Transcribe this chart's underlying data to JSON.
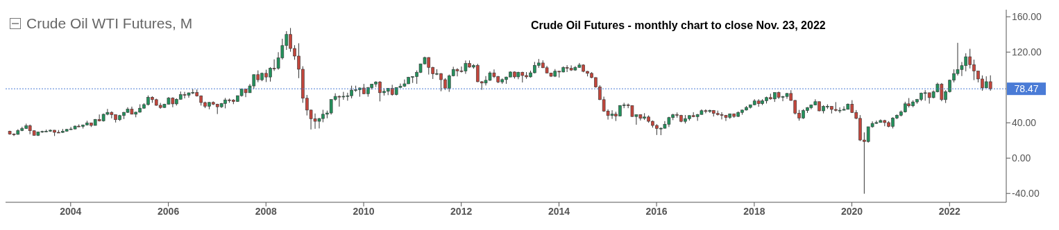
{
  "chart_data": {
    "type": "candlestick",
    "title": "Crude Oil WTI Futures, M",
    "subtitle": "Crude Oil Futures - monthly chart to close Nov. 23, 2022",
    "x": [
      "2002-10",
      "2002-11",
      "2002-12",
      "2003-01",
      "2003-02",
      "2003-03",
      "2003-04",
      "2003-05",
      "2003-06",
      "2003-07",
      "2003-08",
      "2003-09",
      "2003-10",
      "2003-11",
      "2003-12",
      "2004-01",
      "2004-02",
      "2004-03",
      "2004-04",
      "2004-05",
      "2004-06",
      "2004-07",
      "2004-08",
      "2004-09",
      "2004-10",
      "2004-11",
      "2004-12",
      "2005-01",
      "2005-02",
      "2005-03",
      "2005-04",
      "2005-05",
      "2005-06",
      "2005-07",
      "2005-08",
      "2005-09",
      "2005-10",
      "2005-11",
      "2005-12",
      "2006-01",
      "2006-02",
      "2006-03",
      "2006-04",
      "2006-05",
      "2006-06",
      "2006-07",
      "2006-08",
      "2006-09",
      "2006-10",
      "2006-11",
      "2006-12",
      "2007-01",
      "2007-02",
      "2007-03",
      "2007-04",
      "2007-05",
      "2007-06",
      "2007-07",
      "2007-08",
      "2007-09",
      "2007-10",
      "2007-11",
      "2007-12",
      "2008-01",
      "2008-02",
      "2008-03",
      "2008-04",
      "2008-05",
      "2008-06",
      "2008-07",
      "2008-08",
      "2008-09",
      "2008-10",
      "2008-11",
      "2008-12",
      "2009-01",
      "2009-02",
      "2009-03",
      "2009-04",
      "2009-05",
      "2009-06",
      "2009-07",
      "2009-08",
      "2009-09",
      "2009-10",
      "2009-11",
      "2009-12",
      "2010-01",
      "2010-02",
      "2010-03",
      "2010-04",
      "2010-05",
      "2010-06",
      "2010-07",
      "2010-08",
      "2010-09",
      "2010-10",
      "2010-11",
      "2010-12",
      "2011-01",
      "2011-02",
      "2011-03",
      "2011-04",
      "2011-05",
      "2011-06",
      "2011-07",
      "2011-08",
      "2011-09",
      "2011-10",
      "2011-11",
      "2011-12",
      "2012-01",
      "2012-02",
      "2012-03",
      "2012-04",
      "2012-05",
      "2012-06",
      "2012-07",
      "2012-08",
      "2012-09",
      "2012-10",
      "2012-11",
      "2012-12",
      "2013-01",
      "2013-02",
      "2013-03",
      "2013-04",
      "2013-05",
      "2013-06",
      "2013-07",
      "2013-08",
      "2013-09",
      "2013-10",
      "2013-11",
      "2013-12",
      "2014-01",
      "2014-02",
      "2014-03",
      "2014-04",
      "2014-05",
      "2014-06",
      "2014-07",
      "2014-08",
      "2014-09",
      "2014-10",
      "2014-11",
      "2014-12",
      "2015-01",
      "2015-02",
      "2015-03",
      "2015-04",
      "2015-05",
      "2015-06",
      "2015-07",
      "2015-08",
      "2015-09",
      "2015-10",
      "2015-11",
      "2015-12",
      "2016-01",
      "2016-02",
      "2016-03",
      "2016-04",
      "2016-05",
      "2016-06",
      "2016-07",
      "2016-08",
      "2016-09",
      "2016-10",
      "2016-11",
      "2016-12",
      "2017-01",
      "2017-02",
      "2017-03",
      "2017-04",
      "2017-05",
      "2017-06",
      "2017-07",
      "2017-08",
      "2017-09",
      "2017-10",
      "2017-11",
      "2017-12",
      "2018-01",
      "2018-02",
      "2018-03",
      "2018-04",
      "2018-05",
      "2018-06",
      "2018-07",
      "2018-08",
      "2018-09",
      "2018-10",
      "2018-11",
      "2018-12",
      "2019-01",
      "2019-02",
      "2019-03",
      "2019-04",
      "2019-05",
      "2019-06",
      "2019-07",
      "2019-08",
      "2019-09",
      "2019-10",
      "2019-11",
      "2019-12",
      "2020-01",
      "2020-02",
      "2020-03",
      "2020-04",
      "2020-05",
      "2020-06",
      "2020-07",
      "2020-08",
      "2020-09",
      "2020-10",
      "2020-11",
      "2020-12",
      "2021-01",
      "2021-02",
      "2021-03",
      "2021-04",
      "2021-05",
      "2021-06",
      "2021-07",
      "2021-08",
      "2021-09",
      "2021-10",
      "2021-11",
      "2021-12",
      "2022-01",
      "2022-02",
      "2022-03",
      "2022-04",
      "2022-05",
      "2022-06",
      "2022-07",
      "2022-08",
      "2022-09",
      "2022-10",
      "2022-11"
    ],
    "ohlc": [
      [
        30.5,
        31,
        26.5,
        27.2
      ],
      [
        27.2,
        28,
        25,
        26.9
      ],
      [
        26.9,
        32.7,
        26.5,
        31.2
      ],
      [
        31.2,
        35.5,
        30.5,
        33.5
      ],
      [
        33.5,
        39,
        33,
        36.6
      ],
      [
        36.6,
        38,
        27,
        31
      ],
      [
        31,
        31.5,
        25.5,
        25.8
      ],
      [
        25.8,
        30,
        25,
        29.6
      ],
      [
        29.6,
        31,
        28.5,
        30.2
      ],
      [
        30.2,
        32.3,
        29.5,
        30.5
      ],
      [
        30.5,
        32.4,
        29.8,
        31.6
      ],
      [
        31.6,
        31.8,
        25,
        29.2
      ],
      [
        29.2,
        31.8,
        28.5,
        29.1
      ],
      [
        29.1,
        33,
        28.5,
        30.4
      ],
      [
        30.4,
        33.1,
        30,
        32.5
      ],
      [
        32.5,
        35.3,
        32,
        33
      ],
      [
        33,
        37,
        32.6,
        36.2
      ],
      [
        36.2,
        38.2,
        35,
        35.8
      ],
      [
        35.8,
        38,
        33.5,
        37.4
      ],
      [
        37.4,
        42.3,
        37,
        39.9
      ],
      [
        39.9,
        40,
        35.2,
        37
      ],
      [
        37,
        44.3,
        37,
        43.8
      ],
      [
        43.8,
        49.4,
        41.5,
        42.1
      ],
      [
        42.1,
        50.5,
        41.3,
        49.6
      ],
      [
        49.6,
        55.7,
        48.5,
        51.8
      ],
      [
        51.8,
        53,
        45,
        49.1
      ],
      [
        49.1,
        49.4,
        40.3,
        43.5
      ],
      [
        43.5,
        49,
        42.1,
        48.2
      ],
      [
        48.2,
        52.3,
        44.2,
        51.8
      ],
      [
        51.8,
        57.6,
        51.1,
        55.4
      ],
      [
        55.4,
        58.3,
        49.5,
        49.7
      ],
      [
        49.7,
        52.5,
        46.2,
        52
      ],
      [
        52,
        60.9,
        51.5,
        56.5
      ],
      [
        56.5,
        62.1,
        56,
        60.6
      ],
      [
        60.6,
        70.9,
        59.6,
        68.9
      ],
      [
        68.9,
        70,
        62.6,
        66.2
      ],
      [
        66.2,
        67.3,
        59.2,
        59.8
      ],
      [
        59.8,
        62.5,
        55.8,
        57.3
      ],
      [
        57.3,
        61.5,
        56.8,
        61
      ],
      [
        61,
        69.2,
        60.8,
        67.9
      ],
      [
        67.9,
        68.9,
        57.6,
        61.4
      ],
      [
        61.4,
        67.7,
        59.5,
        66.6
      ],
      [
        66.6,
        75.4,
        66.3,
        71.9
      ],
      [
        71.9,
        75,
        67.6,
        71.3
      ],
      [
        71.3,
        74.2,
        68.4,
        73.9
      ],
      [
        73.9,
        78.4,
        72.5,
        74.4
      ],
      [
        74.4,
        77.7,
        69.7,
        70.3
      ],
      [
        70.3,
        71,
        59.5,
        62.9
      ],
      [
        62.9,
        63.9,
        56.6,
        58.7
      ],
      [
        58.7,
        63.4,
        55.3,
        63.1
      ],
      [
        63.1,
        64.2,
        60,
        61.1
      ],
      [
        61.1,
        61.5,
        49.9,
        58.1
      ],
      [
        58.1,
        62.4,
        56.8,
        61.8
      ],
      [
        61.8,
        68.1,
        56.3,
        65.9
      ],
      [
        65.9,
        67.4,
        62.6,
        65.7
      ],
      [
        65.7,
        66.7,
        61.1,
        64
      ],
      [
        64,
        70.8,
        63.8,
        70.7
      ],
      [
        70.7,
        78.8,
        69.6,
        78.2
      ],
      [
        78.2,
        78.3,
        69,
        74
      ],
      [
        74,
        83.9,
        73.9,
        81.7
      ],
      [
        81.7,
        94.5,
        78.3,
        94.5
      ],
      [
        94.5,
        99.3,
        85.9,
        88.7
      ],
      [
        88.7,
        96.8,
        87.1,
        96
      ],
      [
        96,
        100.1,
        86.1,
        91.8
      ],
      [
        91.8,
        103,
        86.6,
        101.8
      ],
      [
        101.8,
        111.8,
        98.7,
        101.6
      ],
      [
        101.6,
        119.9,
        100.1,
        113.5
      ],
      [
        113.5,
        135.1,
        111.6,
        127.4
      ],
      [
        127.4,
        143.7,
        122.5,
        140
      ],
      [
        140,
        147.3,
        120.4,
        124.1
      ],
      [
        124.1,
        127.8,
        111.3,
        115.5
      ],
      [
        115.5,
        130,
        90.5,
        100.6
      ],
      [
        100.6,
        104,
        62.6,
        67.8
      ],
      [
        67.8,
        71.5,
        48.3,
        54.4
      ],
      [
        54.4,
        54.8,
        32.4,
        44.6
      ],
      [
        44.6,
        50.5,
        33.2,
        41.7
      ],
      [
        41.7,
        45.5,
        33.6,
        44.8
      ],
      [
        44.8,
        54.7,
        40.6,
        49.7
      ],
      [
        49.7,
        53.8,
        45.1,
        51.1
      ],
      [
        51.1,
        66.5,
        49.3,
        66.3
      ],
      [
        66.3,
        73.4,
        64.8,
        69.9
      ],
      [
        69.9,
        71,
        58.3,
        69.5
      ],
      [
        69.5,
        75,
        66,
        70
      ],
      [
        70,
        74,
        65,
        70.6
      ],
      [
        70.6,
        82,
        67.6,
        77
      ],
      [
        77,
        82,
        75,
        77.3
      ],
      [
        77.3,
        80,
        69.5,
        79.4
      ],
      [
        79.4,
        84,
        72.4,
        72.9
      ],
      [
        72.9,
        80.5,
        69.5,
        79.7
      ],
      [
        79.7,
        83.8,
        77.6,
        83.8
      ],
      [
        83.8,
        87.1,
        80.5,
        86.2
      ],
      [
        86.2,
        87.2,
        64.2,
        74
      ],
      [
        74,
        79.1,
        70.8,
        75.6
      ],
      [
        75.6,
        79.2,
        71.3,
        79
      ],
      [
        79,
        83,
        70.7,
        71.9
      ],
      [
        71.9,
        80,
        71,
        80
      ],
      [
        80,
        84.4,
        79.6,
        81.4
      ],
      [
        81.4,
        89,
        80.6,
        84.1
      ],
      [
        84.1,
        92,
        84,
        91.4
      ],
      [
        91.4,
        92.6,
        85.1,
        92.2
      ],
      [
        92.2,
        99.3,
        84.1,
        97
      ],
      [
        97,
        106.9,
        96.3,
        106.7
      ],
      [
        106.7,
        114.8,
        106,
        113.9
      ],
      [
        113.9,
        114.2,
        94.6,
        102.7
      ],
      [
        102.7,
        103.4,
        89.6,
        95.4
      ],
      [
        95.4,
        100.6,
        94,
        95.7
      ],
      [
        95.7,
        96.2,
        75.7,
        88.8
      ],
      [
        88.8,
        90.5,
        77.1,
        79.2
      ],
      [
        79.2,
        94.6,
        75,
        93.2
      ],
      [
        93.2,
        103.4,
        92.5,
        100.4
      ],
      [
        100.4,
        101.8,
        92.5,
        98.8
      ],
      [
        98.8,
        103.7,
        96.9,
        98.5
      ],
      [
        98.5,
        110.5,
        95.4,
        107.1
      ],
      [
        107.1,
        110.6,
        102.4,
        103
      ],
      [
        103,
        106.4,
        101.3,
        104.9
      ],
      [
        104.9,
        106.8,
        85.9,
        86.5
      ],
      [
        86.5,
        87.1,
        77.3,
        85
      ],
      [
        85,
        92.9,
        82.2,
        88.1
      ],
      [
        88.1,
        98.3,
        87.4,
        96.5
      ],
      [
        96.5,
        100.4,
        90.6,
        92.2
      ],
      [
        92.2,
        93.1,
        84.9,
        86.2
      ],
      [
        86.2,
        90.2,
        84,
        88.9
      ],
      [
        88.9,
        92.2,
        84.1,
        91.8
      ],
      [
        91.8,
        98.2,
        91.8,
        97.5
      ],
      [
        97.5,
        98.2,
        90,
        92
      ],
      [
        92,
        97.8,
        89.3,
        97.2
      ],
      [
        97.2,
        97.8,
        85.6,
        93.5
      ],
      [
        93.5,
        97.4,
        89.8,
        92
      ],
      [
        92,
        99,
        91.1,
        96.6
      ],
      [
        96.6,
        108.9,
        95.9,
        105
      ],
      [
        105,
        112.2,
        102.2,
        107.7
      ],
      [
        107.7,
        110.7,
        101.9,
        102.3
      ],
      [
        102.3,
        104.4,
        96,
        96.4
      ],
      [
        96.4,
        96.4,
        91.8,
        92.7
      ],
      [
        92.7,
        100.8,
        91.8,
        98.4
      ],
      [
        98.4,
        98.4,
        91.2,
        97.5
      ],
      [
        97.5,
        103.9,
        97,
        102.6
      ],
      [
        102.6,
        105.2,
        97.4,
        101.6
      ],
      [
        101.6,
        105,
        98.7,
        99.7
      ],
      [
        99.7,
        104.2,
        98.8,
        102.7
      ],
      [
        102.7,
        107.7,
        102.1,
        105.4
      ],
      [
        105.4,
        106.2,
        97.2,
        98.2
      ],
      [
        98.2,
        98.7,
        92.5,
        96
      ],
      [
        96,
        97.3,
        90.4,
        91.2
      ],
      [
        91.2,
        91.4,
        79.8,
        80.5
      ],
      [
        80.5,
        82.5,
        65.7,
        66.2
      ],
      [
        66.2,
        69.6,
        52.4,
        53.3
      ],
      [
        53.3,
        55.2,
        43.6,
        48.2
      ],
      [
        48.2,
        54.2,
        44.4,
        49.8
      ],
      [
        49.8,
        52.5,
        42,
        47.6
      ],
      [
        47.6,
        59.9,
        47.3,
        59.6
      ],
      [
        59.6,
        62.6,
        56.5,
        60.3
      ],
      [
        60.3,
        61.8,
        56.5,
        59.5
      ],
      [
        59.5,
        59.7,
        46.7,
        47.1
      ],
      [
        47.1,
        49.3,
        37.8,
        49.2
      ],
      [
        49.2,
        49.3,
        42.6,
        45.1
      ],
      [
        45.1,
        50.9,
        43.2,
        46.6
      ],
      [
        46.6,
        48.4,
        40,
        41.7
      ],
      [
        41.7,
        42.6,
        34.5,
        37
      ],
      [
        37,
        38.4,
        26.2,
        33.6
      ],
      [
        33.6,
        34.8,
        26,
        33.8
      ],
      [
        33.8,
        41.9,
        33.6,
        38.3
      ],
      [
        38.3,
        46.8,
        35.2,
        45.9
      ],
      [
        45.9,
        50.2,
        43,
        49.1
      ],
      [
        49.1,
        51.7,
        45.8,
        48.3
      ],
      [
        48.3,
        49,
        40.6,
        41.6
      ],
      [
        41.6,
        48.8,
        39.2,
        44.7
      ],
      [
        44.7,
        48.4,
        42.5,
        48.2
      ],
      [
        48.2,
        51.9,
        46.3,
        46.9
      ],
      [
        46.9,
        50,
        42.2,
        49.4
      ],
      [
        49.4,
        55.2,
        49.4,
        53.7
      ],
      [
        53.7,
        55.2,
        50.7,
        52.8
      ],
      [
        52.8,
        54.9,
        51.2,
        54
      ],
      [
        54,
        54.4,
        47.1,
        50.6
      ],
      [
        50.6,
        53.8,
        48.2,
        49.3
      ],
      [
        49.3,
        52,
        43.8,
        48.3
      ],
      [
        48.3,
        48.9,
        42,
        46
      ],
      [
        46,
        50.4,
        44.4,
        50.2
      ],
      [
        50.2,
        50.4,
        45.6,
        47.2
      ],
      [
        47.2,
        52.9,
        46.5,
        51.7
      ],
      [
        51.7,
        54.8,
        49.1,
        54.4
      ],
      [
        54.4,
        59,
        53.9,
        57.4
      ],
      [
        57.4,
        60.5,
        56.1,
        60.4
      ],
      [
        60.4,
        66.7,
        59.8,
        64.7
      ],
      [
        64.7,
        66.7,
        58.1,
        61.6
      ],
      [
        61.6,
        66.7,
        60,
        64.9
      ],
      [
        64.9,
        69.6,
        61.8,
        68.6
      ],
      [
        68.6,
        72.9,
        66.1,
        67
      ],
      [
        67,
        74.5,
        63.6,
        74.2
      ],
      [
        74.2,
        75.3,
        67,
        68.8
      ],
      [
        68.8,
        70.4,
        64.4,
        69.8
      ],
      [
        69.8,
        73.8,
        67.1,
        73.2
      ],
      [
        73.2,
        76.9,
        64.9,
        65.3
      ],
      [
        65.3,
        65.9,
        49.4,
        50.9
      ],
      [
        50.9,
        54.6,
        42.4,
        45.4
      ],
      [
        45.4,
        55.4,
        44.4,
        53.8
      ],
      [
        53.8,
        57.8,
        51.2,
        57.2
      ],
      [
        57.2,
        60.7,
        55.3,
        60.1
      ],
      [
        60.1,
        66.6,
        59.8,
        63.9
      ],
      [
        63.9,
        63.9,
        53,
        53.5
      ],
      [
        53.5,
        59.9,
        50.6,
        58.5
      ],
      [
        58.5,
        60.9,
        55.6,
        58.6
      ],
      [
        58.6,
        58.8,
        50.5,
        55.1
      ],
      [
        55.1,
        63.4,
        52.8,
        54.1
      ],
      [
        54.1,
        57.5,
        51,
        54.2
      ],
      [
        54.2,
        58.7,
        54.2,
        55.2
      ],
      [
        55.2,
        61.9,
        55,
        61.1
      ],
      [
        61.1,
        65.6,
        51.1,
        51.6
      ],
      [
        51.6,
        54.4,
        44,
        45
      ],
      [
        45,
        48.7,
        19.3,
        20.5
      ],
      [
        20.5,
        29.1,
        -40.3,
        18.8
      ],
      [
        18.8,
        35.5,
        17.5,
        35.5
      ],
      [
        35.5,
        41.6,
        34.4,
        39.3
      ],
      [
        39.3,
        42.5,
        38.7,
        40.3
      ],
      [
        40.3,
        43.8,
        40.3,
        42.6
      ],
      [
        42.6,
        43.4,
        36.1,
        40.2
      ],
      [
        40.2,
        41.9,
        34.9,
        35.8
      ],
      [
        35.8,
        46.3,
        33.6,
        45.3
      ],
      [
        45.3,
        49.4,
        44.2,
        48.5
      ],
      [
        48.5,
        53.9,
        47.2,
        52.2
      ],
      [
        52.2,
        63.8,
        51.6,
        61.5
      ],
      [
        61.5,
        68,
        57.3,
        59.2
      ],
      [
        59.2,
        65.5,
        57.6,
        63.6
      ],
      [
        63.6,
        67,
        61.6,
        66.3
      ],
      [
        66.3,
        74.2,
        64.6,
        73.5
      ],
      [
        73.5,
        77,
        65,
        74
      ],
      [
        74,
        74,
        61.7,
        68.5
      ],
      [
        68.5,
        76.7,
        67.6,
        75
      ],
      [
        75,
        85.4,
        74.4,
        83.6
      ],
      [
        83.6,
        85,
        64.4,
        66.2
      ],
      [
        66.2,
        76.9,
        62.4,
        75.2
      ],
      [
        75.2,
        88.8,
        74.3,
        88.2
      ],
      [
        88.2,
        100.5,
        85.7,
        95.7
      ],
      [
        95.7,
        130.5,
        93.5,
        100.3
      ],
      [
        100.3,
        108.8,
        92.9,
        104.7
      ],
      [
        104.7,
        118.7,
        98.2,
        114.7
      ],
      [
        114.7,
        123.7,
        101.5,
        105.8
      ],
      [
        105.8,
        111.5,
        88.3,
        98.6
      ],
      [
        98.6,
        98.6,
        85.7,
        89.6
      ],
      [
        89.6,
        93.6,
        76.3,
        79.5
      ],
      [
        79.5,
        92.6,
        79.3,
        86.5
      ],
      [
        86.5,
        93.7,
        76.3,
        78.47
      ]
    ],
    "xlim": [
      "2002-09",
      "2023-03"
    ],
    "xticks": [
      "2004",
      "2006",
      "2008",
      "2010",
      "2012",
      "2014",
      "2016",
      "2018",
      "2020",
      "2022"
    ],
    "ylim": [
      -50,
      168
    ],
    "yticks": [
      {
        "value": -40,
        "label": "-40.00"
      },
      {
        "value": 0,
        "label": "0.00"
      },
      {
        "value": 40,
        "label": "40.00"
      },
      {
        "value": 120,
        "label": "120.00"
      },
      {
        "value": 160,
        "label": "160.00"
      }
    ],
    "ref_lines": [
      {
        "axis": "y",
        "value": 78.47,
        "label": "78.47",
        "color": "#4a7bd6",
        "line_style": "dotted"
      }
    ]
  }
}
